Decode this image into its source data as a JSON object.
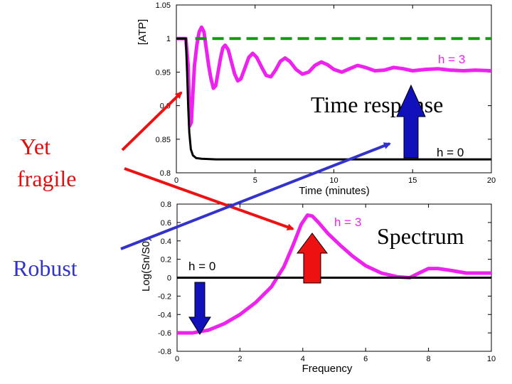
{
  "colors": {
    "magenta": "#ee22ee",
    "black": "#000000",
    "green": "#119911",
    "red": "#ee1111",
    "blue": "#1111bb",
    "annotation_red": "#dd1111",
    "annotation_blue": "#3333cc"
  },
  "annotations": {
    "yet_fragile": [
      "Yet",
      "fragile"
    ],
    "robust": "Robust",
    "time_response": "Time response",
    "spectrum": "Spectrum"
  },
  "chart_data": [
    {
      "type": "line",
      "name": "time-response",
      "ylabel": "[ATP]",
      "xlabel": "Time (minutes)",
      "xlim": [
        0,
        20
      ],
      "ylim": [
        0.8,
        1.05
      ],
      "xticks": [
        "0",
        "5",
        "10",
        "15",
        "20"
      ],
      "yticks": [
        "1.05",
        "1",
        "0.95",
        "0.9",
        "0.85",
        "0.8"
      ],
      "yticks_vals": [
        1.05,
        1,
        0.95,
        0.9,
        0.85,
        0.8
      ],
      "xticks_vals": [
        0,
        5,
        10,
        15,
        20
      ],
      "series_labels": {
        "h3": "h = 3",
        "h0": "h = 0"
      },
      "series": [
        {
          "key": "h3",
          "color": "magenta",
          "points": [
            [
              0,
              1
            ],
            [
              0.6,
              1
            ],
            [
              0.75,
              0.96
            ],
            [
              0.8,
              0.92
            ],
            [
              0.85,
              0.87
            ],
            [
              0.95,
              0.875
            ],
            [
              1.05,
              0.92
            ],
            [
              1.15,
              0.96
            ],
            [
              1.3,
              0.99
            ],
            [
              1.45,
              1.01
            ],
            [
              1.6,
              1.017
            ],
            [
              1.75,
              1.01
            ],
            [
              1.9,
              0.985
            ],
            [
              2.05,
              0.96
            ],
            [
              2.2,
              0.94
            ],
            [
              2.35,
              0.926
            ],
            [
              2.5,
              0.93
            ],
            [
              2.65,
              0.95
            ],
            [
              2.8,
              0.97
            ],
            [
              2.95,
              0.986
            ],
            [
              3.1,
              0.99
            ],
            [
              3.3,
              0.983
            ],
            [
              3.5,
              0.965
            ],
            [
              3.7,
              0.947
            ],
            [
              3.9,
              0.937
            ],
            [
              4.1,
              0.94
            ],
            [
              4.35,
              0.956
            ],
            [
              4.6,
              0.972
            ],
            [
              4.85,
              0.978
            ],
            [
              5.1,
              0.972
            ],
            [
              5.4,
              0.958
            ],
            [
              5.7,
              0.945
            ],
            [
              6.0,
              0.943
            ],
            [
              6.3,
              0.953
            ],
            [
              6.6,
              0.966
            ],
            [
              6.9,
              0.971
            ],
            [
              7.2,
              0.966
            ],
            [
              7.6,
              0.954
            ],
            [
              8.0,
              0.947
            ],
            [
              8.4,
              0.95
            ],
            [
              8.8,
              0.96
            ],
            [
              9.2,
              0.965
            ],
            [
              9.6,
              0.961
            ],
            [
              10.0,
              0.954
            ],
            [
              10.5,
              0.95
            ],
            [
              11.0,
              0.955
            ],
            [
              11.5,
              0.96
            ],
            [
              12.0,
              0.957
            ],
            [
              12.6,
              0.952
            ],
            [
              13.2,
              0.953
            ],
            [
              13.8,
              0.957
            ],
            [
              14.4,
              0.955
            ],
            [
              15.0,
              0.952
            ],
            [
              15.8,
              0.954
            ],
            [
              16.6,
              0.955
            ],
            [
              17.4,
              0.953
            ],
            [
              18.2,
              0.952
            ],
            [
              19.0,
              0.953
            ],
            [
              20,
              0.952
            ]
          ]
        },
        {
          "key": "h0",
          "color": "black",
          "points": [
            [
              0,
              1
            ],
            [
              0.6,
              1
            ],
            [
              0.68,
              0.95
            ],
            [
              0.75,
              0.9
            ],
            [
              0.82,
              0.86
            ],
            [
              0.92,
              0.835
            ],
            [
              1.05,
              0.826
            ],
            [
              1.25,
              0.822
            ],
            [
              1.6,
              0.821
            ],
            [
              2.5,
              0.82
            ],
            [
              5,
              0.82
            ],
            [
              10,
              0.82
            ],
            [
              15,
              0.82
            ],
            [
              20,
              0.82
            ]
          ]
        },
        {
          "key": "ref",
          "color": "green",
          "dashed": true,
          "points": [
            [
              1.2,
              1
            ],
            [
              20,
              1
            ]
          ]
        }
      ]
    },
    {
      "type": "line",
      "name": "spectrum",
      "ylabel": "Log(Sn/S0)",
      "xlabel": "Frequency",
      "xlim": [
        0,
        10
      ],
      "ylim": [
        -0.8,
        0.8
      ],
      "xticks": [
        "0",
        "2",
        "4",
        "6",
        "8",
        "10"
      ],
      "xticks_vals": [
        0,
        2,
        4,
        6,
        8,
        10
      ],
      "yticks": [
        "0.8",
        "0.6",
        "0.4",
        "0.2",
        "0",
        "-0.2",
        "-0.4",
        "-0.6",
        "-0.8"
      ],
      "yticks_vals": [
        0.8,
        0.6,
        0.4,
        0.2,
        0,
        -0.2,
        -0.4,
        -0.6,
        -0.8
      ],
      "series_labels": {
        "h3": "h = 3",
        "h0": "h = 0"
      },
      "series": [
        {
          "key": "h3",
          "color": "magenta",
          "points": [
            [
              0,
              -0.6
            ],
            [
              0.5,
              -0.6
            ],
            [
              1.0,
              -0.57
            ],
            [
              1.5,
              -0.5
            ],
            [
              2.0,
              -0.4
            ],
            [
              2.5,
              -0.27
            ],
            [
              3.0,
              -0.1
            ],
            [
              3.4,
              0.12
            ],
            [
              3.7,
              0.36
            ],
            [
              3.95,
              0.58
            ],
            [
              4.15,
              0.68
            ],
            [
              4.3,
              0.67
            ],
            [
              4.5,
              0.6
            ],
            [
              4.8,
              0.48
            ],
            [
              5.2,
              0.35
            ],
            [
              5.6,
              0.23
            ],
            [
              6.0,
              0.13
            ],
            [
              6.5,
              0.05
            ],
            [
              7.0,
              0.01
            ],
            [
              7.4,
              0.0
            ],
            [
              7.7,
              0.05
            ],
            [
              8.0,
              0.1
            ],
            [
              8.3,
              0.1
            ],
            [
              8.7,
              0.08
            ],
            [
              9.2,
              0.05
            ],
            [
              10,
              0.05
            ]
          ]
        },
        {
          "key": "h0",
          "color": "black",
          "points": [
            [
              0,
              0
            ],
            [
              10,
              0
            ]
          ]
        }
      ]
    }
  ]
}
